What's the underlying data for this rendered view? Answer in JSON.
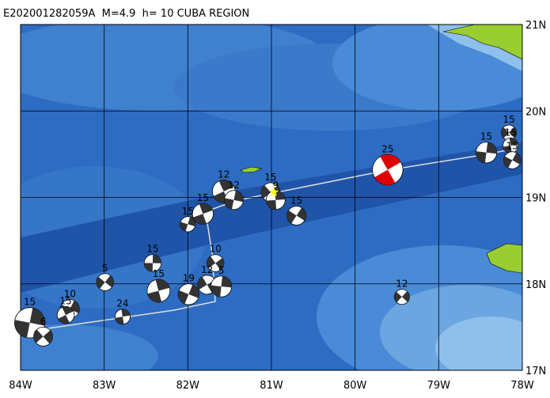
{
  "map": {
    "title": "E202001282059A  M=4.9  h= 10 CUBA REGION",
    "xlim": [
      -84,
      -78
    ],
    "ylim": [
      17,
      21
    ],
    "xticks": [
      {
        "value": -84,
        "label": "84W"
      },
      {
        "value": -83,
        "label": "83W"
      },
      {
        "value": -82,
        "label": "82W"
      },
      {
        "value": -81,
        "label": "81W"
      },
      {
        "value": -80,
        "label": "80W"
      },
      {
        "value": -79,
        "label": "79W"
      },
      {
        "value": -78,
        "label": "78W"
      }
    ],
    "yticks": [
      {
        "value": 17,
        "label": "17N"
      },
      {
        "value": 18,
        "label": "18N"
      },
      {
        "value": 19,
        "label": "19N"
      },
      {
        "value": 20,
        "label": "20N"
      },
      {
        "value": 21,
        "label": "21N"
      }
    ],
    "main_event": {
      "lon": -80.97,
      "lat": 19.06,
      "color": "#ffff00"
    },
    "events": [
      {
        "lon": -79.61,
        "lat": 19.32,
        "depth": 25,
        "color": "#e00000",
        "size": 16
      },
      {
        "lon": -78.43,
        "lat": 19.52,
        "depth": 15,
        "color": "#333333",
        "size": 11
      },
      {
        "lon": -78.16,
        "lat": 19.75,
        "depth": 15,
        "color": "#333333",
        "size": 8
      },
      {
        "lon": -78.14,
        "lat": 19.6,
        "depth": 15,
        "color": "#333333",
        "size": 8
      },
      {
        "lon": -78.12,
        "lat": 19.43,
        "depth": 15,
        "color": "#333333",
        "size": 9
      },
      {
        "lon": -81.57,
        "lat": 19.07,
        "depth": 12,
        "color": "#333333",
        "size": 12
      },
      {
        "lon": -81.45,
        "lat": 18.97,
        "depth": 12,
        "color": "#333333",
        "size": 10
      },
      {
        "lon": -81.01,
        "lat": 19.06,
        "depth": 15,
        "color": "#333333",
        "size": 10
      },
      {
        "lon": -80.95,
        "lat": 18.97,
        "depth": 9,
        "color": "#333333",
        "size": 10
      },
      {
        "lon": -80.7,
        "lat": 18.79,
        "depth": 15,
        "color": "#333333",
        "size": 10
      },
      {
        "lon": -81.82,
        "lat": 18.81,
        "depth": 15,
        "color": "#333333",
        "size": 11
      },
      {
        "lon": -82.0,
        "lat": 18.69,
        "depth": 15,
        "color": "#333333",
        "size": 8
      },
      {
        "lon": -81.67,
        "lat": 18.24,
        "depth": 10,
        "color": "#333333",
        "size": 9
      },
      {
        "lon": -82.42,
        "lat": 18.24,
        "depth": 15,
        "color": "#333333",
        "size": 9
      },
      {
        "lon": -82.99,
        "lat": 18.02,
        "depth": 5,
        "color": "#333333",
        "size": 9
      },
      {
        "lon": -82.35,
        "lat": 17.92,
        "depth": 15,
        "color": "#333333",
        "size": 12
      },
      {
        "lon": -81.99,
        "lat": 17.88,
        "depth": 19,
        "color": "#333333",
        "size": 11
      },
      {
        "lon": -81.77,
        "lat": 17.99,
        "depth": 12,
        "color": "#333333",
        "size": 10
      },
      {
        "lon": -81.6,
        "lat": 17.97,
        "depth": 5,
        "color": "#333333",
        "size": 11
      },
      {
        "lon": -79.44,
        "lat": 17.85,
        "depth": 12,
        "color": "#333333",
        "size": 8
      },
      {
        "lon": -82.78,
        "lat": 17.62,
        "depth": 24,
        "color": "#333333",
        "size": 8
      },
      {
        "lon": -83.41,
        "lat": 17.71,
        "depth": 10,
        "color": "#333333",
        "size": 10
      },
      {
        "lon": -83.46,
        "lat": 17.64,
        "depth": 15,
        "color": "#333333",
        "size": 9
      },
      {
        "lon": -83.89,
        "lat": 17.55,
        "depth": 15,
        "color": "#333333",
        "size": 16
      },
      {
        "lon": -83.73,
        "lat": 17.39,
        "depth": 6,
        "color": "#333333",
        "size": 10
      }
    ]
  }
}
